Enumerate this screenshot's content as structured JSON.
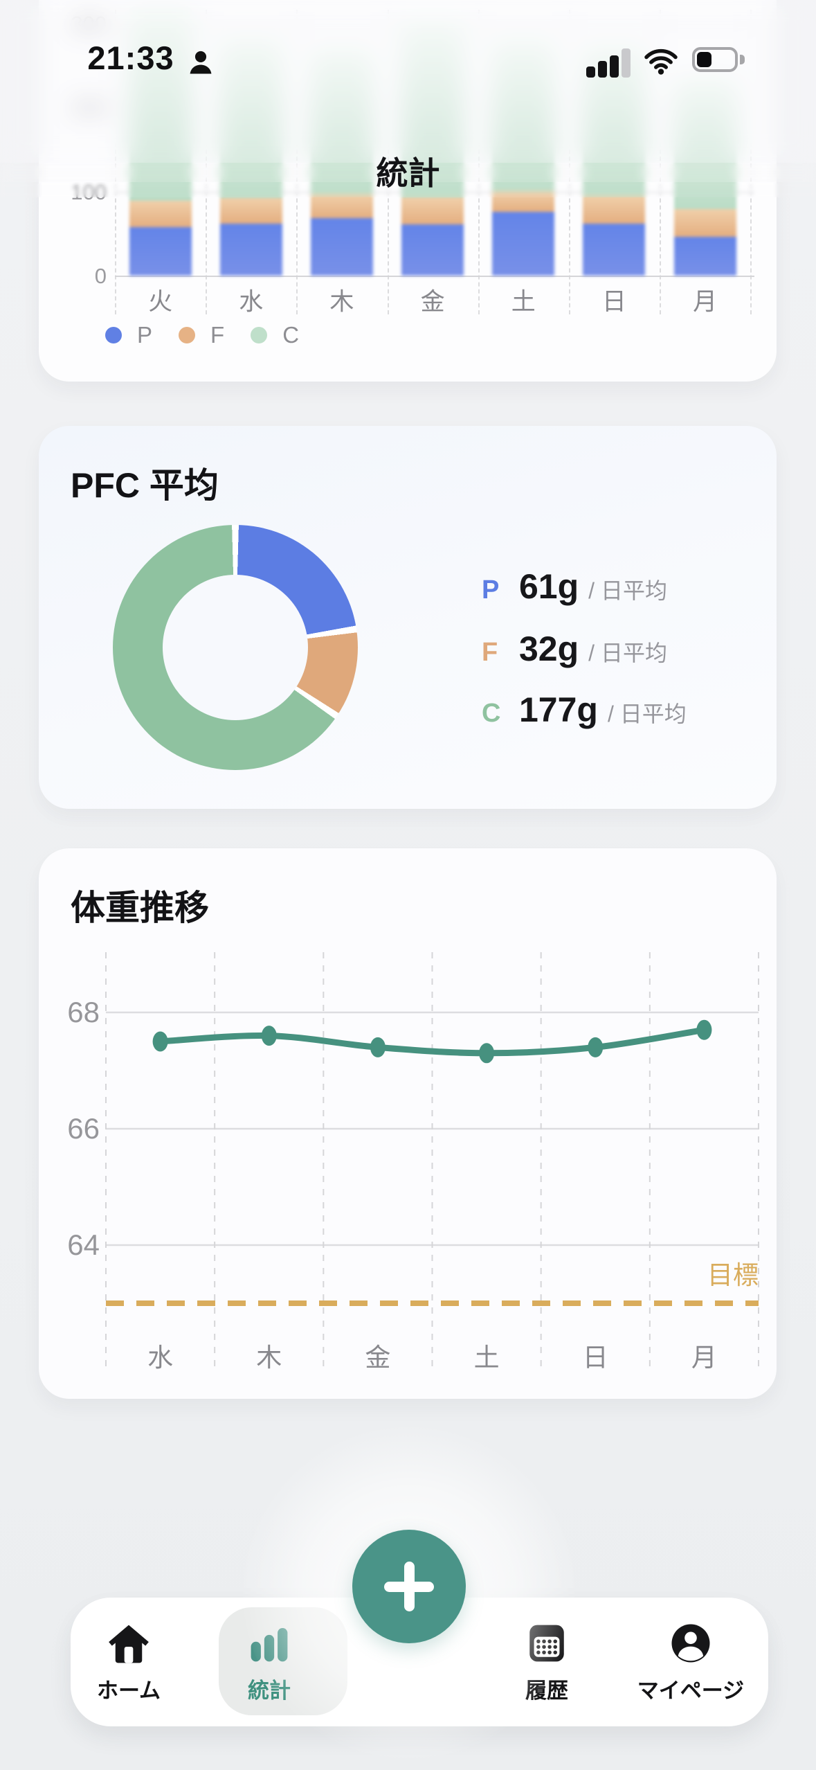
{
  "status_bar": {
    "time": "21:33",
    "focus_icon": "person",
    "signal_bars_filled": 3,
    "signal_bars_total": 4,
    "wifi_on": true,
    "battery_level": 0.3
  },
  "header": {
    "title": "統計"
  },
  "chart_data": [
    {
      "id": "daily-pfc-stacked-bars",
      "type": "bar",
      "stacked": true,
      "categories": [
        "火",
        "水",
        "木",
        "金",
        "土",
        "日",
        "月"
      ],
      "series": [
        {
          "name": "P",
          "color": "#6080e4",
          "values": [
            58,
            62,
            68,
            61,
            76,
            62,
            46
          ]
        },
        {
          "name": "F",
          "color": "#e6b285",
          "values": [
            31,
            30,
            28,
            32,
            24,
            33,
            33
          ]
        },
        {
          "name": "C",
          "color": "#bfdfca",
          "values": [
            228,
            190,
            175,
            209,
            181,
            179,
            157
          ]
        }
      ],
      "yticks": [
        0,
        100,
        200,
        300
      ],
      "ylim": [
        0,
        330
      ],
      "legend_position": "bottom-left",
      "grid": "horizontal-solid, vertical-dashed"
    },
    {
      "id": "pfc-average-donut",
      "type": "pie",
      "title": "PFC 平均",
      "donut": true,
      "start_angle_deg": 0,
      "slices": [
        {
          "label": "P",
          "value": 61,
          "unit": "g",
          "suffix": "/ 日平均",
          "color": "#5c7de3"
        },
        {
          "label": "F",
          "value": 32,
          "unit": "g",
          "suffix": "/ 日平均",
          "color": "#dfa87b"
        },
        {
          "label": "C",
          "value": 177,
          "unit": "g",
          "suffix": "/ 日平均",
          "color": "#8fc2a0"
        }
      ]
    },
    {
      "id": "weight-trend-line",
      "type": "line",
      "title": "体重推移",
      "categories": [
        "水",
        "木",
        "金",
        "土",
        "日",
        "月"
      ],
      "values": [
        67.5,
        67.6,
        67.4,
        67.3,
        67.4,
        67.7
      ],
      "yticks": [
        68,
        66,
        64
      ],
      "ylim": [
        62.7,
        69.3
      ],
      "line_color": "#46917f",
      "goal_line": {
        "value": 63,
        "label": "目標",
        "color": "#d9ac5c",
        "style": "dashed"
      },
      "grid": "horizontal-solid, vertical-dashed"
    }
  ],
  "nav": {
    "items": [
      {
        "label": "ホーム",
        "icon": "home-icon",
        "active": false
      },
      {
        "label": "統計",
        "icon": "bar-chart-icon",
        "active": true
      },
      {
        "label": "履歴",
        "icon": "calendar-icon",
        "active": false
      },
      {
        "label": "マイページ",
        "icon": "person-icon",
        "active": false
      }
    ],
    "fab_label": "+"
  },
  "colors": {
    "teal_accent": "#4a9488",
    "nav_active_text": "#3f9180",
    "bar_gradient_P": [
      "#6384e8",
      "#7890e8"
    ],
    "bar_gradient_F": [
      "#f0cfa9",
      "#e4ae80"
    ],
    "bar_gradient_C": [
      "#f2f9f4",
      "#badcc6"
    ],
    "tick_gray": "#9b9b9f",
    "day_label_gray": "#88888d",
    "goal_amber": "#d9ac5c"
  }
}
